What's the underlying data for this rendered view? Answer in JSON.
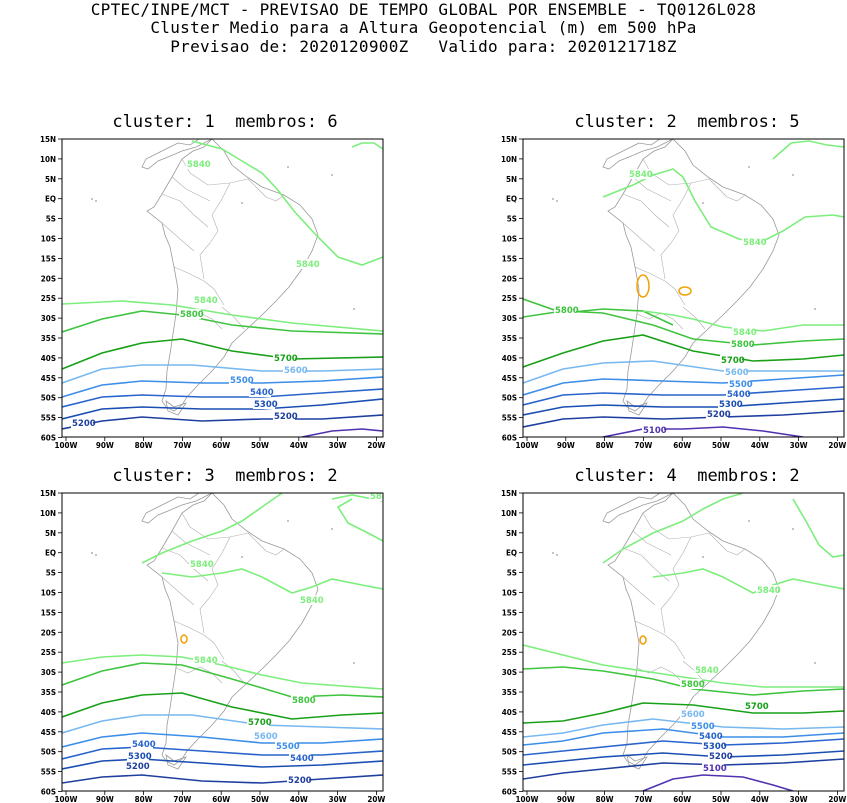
{
  "header": {
    "line1": "CPTEC/INPE/MCT - PREVISAO DE TEMPO GLOBAL POR ENSEMBLE - TQ0126L028",
    "line2": "Cluster Medio para a Altura Geopotencial (m) em 500 hPa",
    "line3": "Previsao de: 2020120900Z   Valido para: 2020121718Z"
  },
  "axes": {
    "lat_labels": [
      "15N",
      "10N",
      "5N",
      "EQ",
      "5S",
      "10S",
      "15S",
      "20S",
      "25S",
      "30S",
      "35S",
      "40S",
      "45S",
      "50S",
      "55S",
      "60S"
    ],
    "lon_labels": [
      "100W",
      "90W",
      "80W",
      "70W",
      "60W",
      "50W",
      "40W",
      "30W",
      "20W"
    ]
  },
  "colors": {
    "c5840": "#7cee7c",
    "c5800": "#3ec43e",
    "c5700": "#18a018",
    "c5600": "#78b8f0",
    "c5500": "#3c8ee8",
    "c5400": "#2864cc",
    "c5300": "#1a4eb4",
    "c5200": "#1e3ea0",
    "c5100": "#5032b0",
    "local": "#f0a000"
  },
  "panels": [
    {
      "title": "cluster: 1  membros: 6",
      "labels": [
        "5840",
        "5840",
        "5840",
        "5800",
        "5700",
        "5600",
        "5500",
        "5400",
        "5300",
        "5200",
        "5200"
      ]
    },
    {
      "title": "cluster: 2  membros: 5",
      "labels": [
        "5840",
        "5840",
        "5800",
        "5840",
        "5800",
        "5700",
        "5600",
        "5500",
        "5400",
        "5300",
        "5200",
        "5100"
      ]
    },
    {
      "title": "cluster: 3  membros: 2",
      "labels": [
        "5840",
        "5840",
        "5840",
        "5840",
        "5800",
        "5700",
        "5600",
        "5500",
        "5400",
        "5400",
        "5300",
        "5200",
        "5200"
      ]
    },
    {
      "title": "cluster: 4  membros: 2",
      "labels": [
        "5840",
        "5840",
        "5800",
        "5700",
        "5600",
        "5500",
        "5400",
        "5300",
        "5200",
        "5100"
      ]
    }
  ]
}
